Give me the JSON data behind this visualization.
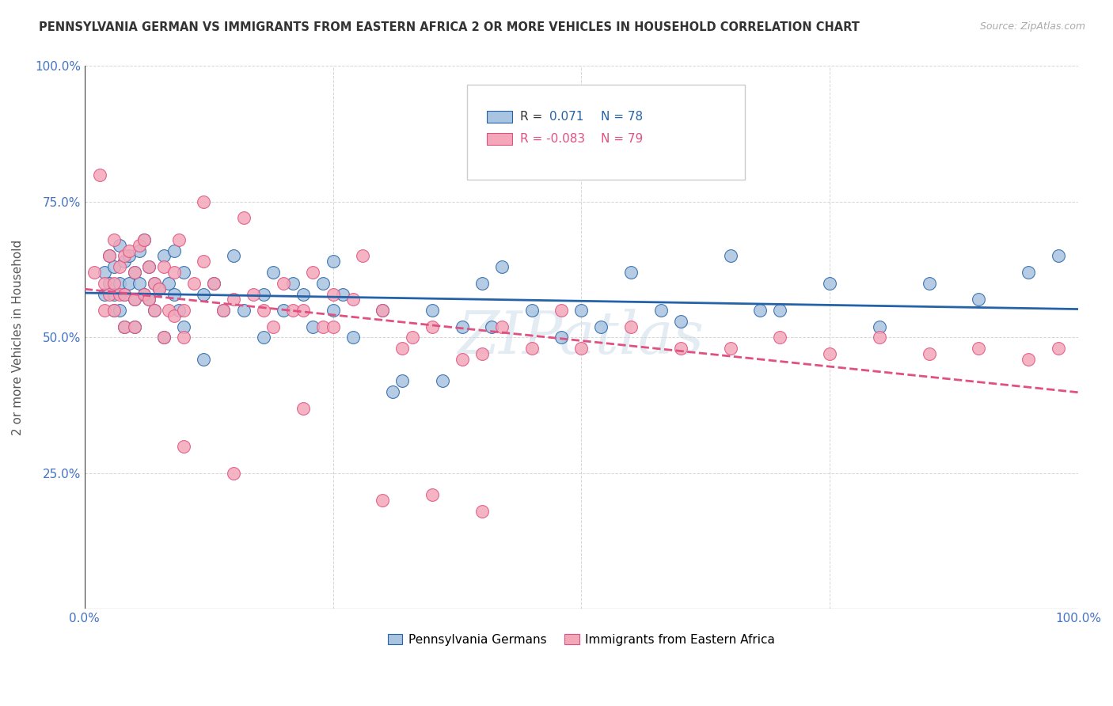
{
  "title": "PENNSYLVANIA GERMAN VS IMMIGRANTS FROM EASTERN AFRICA 2 OR MORE VEHICLES IN HOUSEHOLD CORRELATION CHART",
  "source_text": "Source: ZipAtlas.com",
  "ylabel": "2 or more Vehicles in Household",
  "legend_blue_label": "Pennsylvania Germans",
  "legend_pink_label": "Immigrants from Eastern Africa",
  "blue_color": "#a8c4e0",
  "pink_color": "#f4a7b9",
  "blue_line_color": "#2563a8",
  "pink_line_color": "#e05080",
  "watermark": "ZIPatlas",
  "blue_x": [
    0.02,
    0.02,
    0.025,
    0.025,
    0.03,
    0.03,
    0.03,
    0.035,
    0.035,
    0.035,
    0.04,
    0.04,
    0.04,
    0.045,
    0.045,
    0.05,
    0.05,
    0.05,
    0.055,
    0.055,
    0.06,
    0.06,
    0.065,
    0.065,
    0.07,
    0.07,
    0.075,
    0.08,
    0.08,
    0.085,
    0.09,
    0.09,
    0.095,
    0.1,
    0.1,
    0.12,
    0.12,
    0.13,
    0.14,
    0.15,
    0.16,
    0.18,
    0.18,
    0.19,
    0.2,
    0.21,
    0.22,
    0.23,
    0.24,
    0.25,
    0.25,
    0.26,
    0.27,
    0.3,
    0.31,
    0.32,
    0.35,
    0.36,
    0.38,
    0.4,
    0.41,
    0.42,
    0.45,
    0.48,
    0.5,
    0.52,
    0.55,
    0.58,
    0.6,
    0.65,
    0.68,
    0.7,
    0.75,
    0.8,
    0.85,
    0.9,
    0.95,
    0.98
  ],
  "blue_y": [
    0.62,
    0.58,
    0.65,
    0.6,
    0.63,
    0.58,
    0.55,
    0.67,
    0.6,
    0.55,
    0.64,
    0.58,
    0.52,
    0.65,
    0.6,
    0.62,
    0.57,
    0.52,
    0.66,
    0.6,
    0.68,
    0.58,
    0.63,
    0.57,
    0.6,
    0.55,
    0.59,
    0.65,
    0.5,
    0.6,
    0.66,
    0.58,
    0.55,
    0.62,
    0.52,
    0.58,
    0.46,
    0.6,
    0.55,
    0.65,
    0.55,
    0.58,
    0.5,
    0.62,
    0.55,
    0.6,
    0.58,
    0.52,
    0.6,
    0.55,
    0.64,
    0.58,
    0.5,
    0.55,
    0.4,
    0.42,
    0.55,
    0.42,
    0.52,
    0.6,
    0.52,
    0.63,
    0.55,
    0.5,
    0.55,
    0.52,
    0.62,
    0.55,
    0.53,
    0.65,
    0.55,
    0.55,
    0.6,
    0.52,
    0.6,
    0.57,
    0.62,
    0.65
  ],
  "pink_x": [
    0.01,
    0.015,
    0.02,
    0.02,
    0.025,
    0.025,
    0.03,
    0.03,
    0.03,
    0.035,
    0.035,
    0.04,
    0.04,
    0.04,
    0.045,
    0.05,
    0.05,
    0.05,
    0.055,
    0.06,
    0.06,
    0.065,
    0.065,
    0.07,
    0.07,
    0.075,
    0.08,
    0.08,
    0.085,
    0.09,
    0.09,
    0.095,
    0.1,
    0.1,
    0.11,
    0.12,
    0.12,
    0.13,
    0.14,
    0.15,
    0.16,
    0.17,
    0.18,
    0.19,
    0.2,
    0.21,
    0.22,
    0.23,
    0.24,
    0.25,
    0.25,
    0.27,
    0.28,
    0.3,
    0.32,
    0.33,
    0.35,
    0.38,
    0.4,
    0.42,
    0.45,
    0.48,
    0.5,
    0.55,
    0.6,
    0.65,
    0.7,
    0.75,
    0.8,
    0.85,
    0.9,
    0.95,
    0.98,
    0.4,
    0.22,
    0.1,
    0.3,
    0.35,
    0.15
  ],
  "pink_y": [
    0.62,
    0.8,
    0.6,
    0.55,
    0.65,
    0.58,
    0.68,
    0.6,
    0.55,
    0.63,
    0.58,
    0.65,
    0.58,
    0.52,
    0.66,
    0.62,
    0.57,
    0.52,
    0.67,
    0.68,
    0.58,
    0.63,
    0.57,
    0.6,
    0.55,
    0.59,
    0.63,
    0.5,
    0.55,
    0.62,
    0.54,
    0.68,
    0.55,
    0.5,
    0.6,
    0.75,
    0.64,
    0.6,
    0.55,
    0.57,
    0.72,
    0.58,
    0.55,
    0.52,
    0.6,
    0.55,
    0.55,
    0.62,
    0.52,
    0.58,
    0.52,
    0.57,
    0.65,
    0.55,
    0.48,
    0.5,
    0.52,
    0.46,
    0.47,
    0.52,
    0.48,
    0.55,
    0.48,
    0.52,
    0.48,
    0.48,
    0.5,
    0.47,
    0.5,
    0.47,
    0.48,
    0.46,
    0.48,
    0.18,
    0.37,
    0.3,
    0.2,
    0.21,
    0.25
  ]
}
